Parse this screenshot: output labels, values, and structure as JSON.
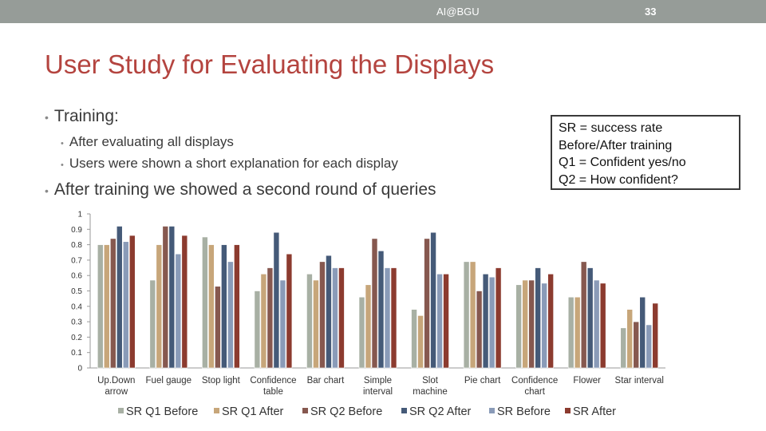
{
  "header": {
    "center_text": "AI@BGU",
    "slide_number": "33"
  },
  "slide": {
    "title": "User Study for Evaluating the Displays",
    "bullets": {
      "training": "Training:",
      "sub1": "After evaluating all displays",
      "sub2": "Users were shown a short explanation for each display",
      "after": "After training we showed a second round of queries"
    },
    "callout": {
      "line1": "SR = success rate",
      "line2": "Before/After training",
      "line3": "Q1 = Confident yes/no",
      "line4": "Q2 = How confident?"
    }
  },
  "colors": {
    "title": "#b4443f",
    "topbar": "#969c98",
    "series": [
      "#a8b0a4",
      "#c7a67a",
      "#86584f",
      "#455a78",
      "#8a9bb8",
      "#8c3b2f"
    ]
  },
  "chart_data": {
    "type": "bar",
    "categories": [
      [
        "Up.Down",
        "arrow"
      ],
      [
        "Fuel gauge"
      ],
      [
        "Stop light"
      ],
      [
        "Confidence",
        "table"
      ],
      [
        "Bar chart"
      ],
      [
        "Simple",
        "interval"
      ],
      [
        "Slot",
        "machine"
      ],
      [
        "Pie chart"
      ],
      [
        "Confidence",
        "chart"
      ],
      [
        "Flower"
      ],
      [
        "Star interval"
      ]
    ],
    "series": [
      {
        "name": "SR Q1 Before",
        "values": [
          0.8,
          0.57,
          0.85,
          0.5,
          0.61,
          0.46,
          0.38,
          0.69,
          0.54,
          0.46,
          0.26
        ]
      },
      {
        "name": "SR Q1 After",
        "values": [
          0.8,
          0.8,
          0.8,
          0.61,
          0.57,
          0.54,
          0.34,
          0.69,
          0.57,
          0.46,
          0.38
        ]
      },
      {
        "name": "SR Q2 Before",
        "values": [
          0.84,
          0.92,
          0.53,
          0.65,
          0.69,
          0.84,
          0.84,
          0.5,
          0.57,
          0.69,
          0.3
        ]
      },
      {
        "name": "SR Q2 After",
        "values": [
          0.92,
          0.92,
          0.8,
          0.88,
          0.73,
          0.76,
          0.88,
          0.61,
          0.65,
          0.65,
          0.46
        ]
      },
      {
        "name": "SR Before",
        "values": [
          0.82,
          0.74,
          0.69,
          0.57,
          0.65,
          0.65,
          0.61,
          0.59,
          0.55,
          0.57,
          0.28
        ]
      },
      {
        "name": "SR After",
        "values": [
          0.86,
          0.86,
          0.8,
          0.74,
          0.65,
          0.65,
          0.61,
          0.65,
          0.61,
          0.55,
          0.42
        ]
      }
    ],
    "yticks": [
      "0",
      "0.1",
      "0.2",
      "0.3",
      "0.4",
      "0.5",
      "0.6",
      "0.7",
      "0.8",
      "0.9",
      "1"
    ],
    "ylim": [
      0,
      1
    ],
    "grid": false,
    "legend_position": "bottom",
    "title": "",
    "xlabel": "",
    "ylabel": ""
  }
}
